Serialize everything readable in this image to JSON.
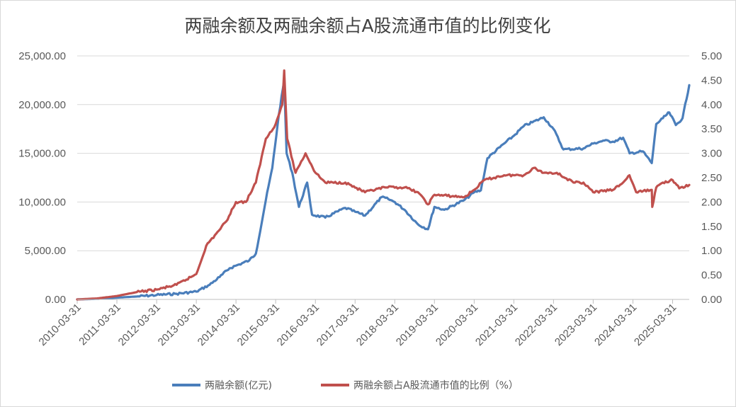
{
  "chart_data": {
    "type": "line",
    "title": "两融余额及两融余额占A股流通市值的比例变化",
    "x_tick_labels": [
      "2010-03-31",
      "2011-03-31",
      "2012-03-31",
      "2013-03-31",
      "2014-03-31",
      "2015-03-31",
      "2016-03-31",
      "2017-03-31",
      "2018-03-31",
      "2019-03-31",
      "2020-03-31",
      "2021-03-31",
      "2022-03-31",
      "2023-03-31",
      "2024-03-31",
      "2025-03-31"
    ],
    "x_range": [
      "2010-03-31",
      "2025-08-31"
    ],
    "y_left": {
      "range": [
        0,
        25000
      ],
      "ticks": [
        "0.00",
        "5,000.00",
        "10,000.00",
        "15,000.00",
        "20,000.00",
        "25,000.00"
      ]
    },
    "y_right": {
      "range": [
        0,
        5
      ],
      "ticks": [
        "0.00",
        "0.50",
        "1.00",
        "1.50",
        "2.00",
        "2.50",
        "3.00",
        "3.50",
        "4.00",
        "4.50",
        "5.00"
      ]
    },
    "grid": "horizontal",
    "legend_position": "bottom",
    "series": [
      {
        "name": "两融余额(亿元)",
        "axis": "left",
        "color": "#4a7ebb",
        "points": [
          [
            "2010-03-31",
            0
          ],
          [
            "2010-09-30",
            60
          ],
          [
            "2011-03-31",
            180
          ],
          [
            "2011-09-30",
            300
          ],
          [
            "2012-03-31",
            450
          ],
          [
            "2012-09-30",
            580
          ],
          [
            "2013-03-31",
            800
          ],
          [
            "2013-07-31",
            1500
          ],
          [
            "2013-10-31",
            2300
          ],
          [
            "2014-01-31",
            3200
          ],
          [
            "2014-04-30",
            3600
          ],
          [
            "2014-07-31",
            4000
          ],
          [
            "2014-09-30",
            4700
          ],
          [
            "2014-12-31",
            10200
          ],
          [
            "2015-02-28",
            13500
          ],
          [
            "2015-04-30",
            19000
          ],
          [
            "2015-06-18",
            22500
          ],
          [
            "2015-07-10",
            15000
          ],
          [
            "2015-08-31",
            13000
          ],
          [
            "2015-10-31",
            9500
          ],
          [
            "2016-01-15",
            12000
          ],
          [
            "2016-02-29",
            8700
          ],
          [
            "2016-06-30",
            8400
          ],
          [
            "2016-12-31",
            9400
          ],
          [
            "2017-03-31",
            9000
          ],
          [
            "2017-06-30",
            8600
          ],
          [
            "2017-11-30",
            10500
          ],
          [
            "2018-01-31",
            10300
          ],
          [
            "2018-03-31",
            10000
          ],
          [
            "2018-06-30",
            9200
          ],
          [
            "2018-10-31",
            7700
          ],
          [
            "2019-01-31",
            7200
          ],
          [
            "2019-03-31",
            9500
          ],
          [
            "2019-06-30",
            9200
          ],
          [
            "2019-12-31",
            10200
          ],
          [
            "2020-03-31",
            11000
          ],
          [
            "2020-05-31",
            11200
          ],
          [
            "2020-07-31",
            14500
          ],
          [
            "2020-12-31",
            16000
          ],
          [
            "2021-03-31",
            16800
          ],
          [
            "2021-06-30",
            17800
          ],
          [
            "2021-12-31",
            18700
          ],
          [
            "2022-03-31",
            17500
          ],
          [
            "2022-06-30",
            15400
          ],
          [
            "2022-12-31",
            15500
          ],
          [
            "2023-03-31",
            16000
          ],
          [
            "2023-06-30",
            16300
          ],
          [
            "2023-09-30",
            16200
          ],
          [
            "2023-12-31",
            16600
          ],
          [
            "2024-02-29",
            15000
          ],
          [
            "2024-06-30",
            15200
          ],
          [
            "2024-09-20",
            14000
          ],
          [
            "2024-10-31",
            18000
          ],
          [
            "2024-12-31",
            18600
          ],
          [
            "2025-02-28",
            19200
          ],
          [
            "2025-04-30",
            17900
          ],
          [
            "2025-06-30",
            18600
          ],
          [
            "2025-08-31",
            22000
          ]
        ]
      },
      {
        "name": "两融余额占A股流通市值的比例（%）",
        "axis": "right",
        "color": "#c0504d",
        "points": [
          [
            "2010-03-31",
            0.0
          ],
          [
            "2010-09-30",
            0.02
          ],
          [
            "2011-03-31",
            0.07
          ],
          [
            "2011-09-30",
            0.15
          ],
          [
            "2012-03-31",
            0.2
          ],
          [
            "2012-09-30",
            0.3
          ],
          [
            "2013-03-31",
            0.52
          ],
          [
            "2013-06-30",
            1.1
          ],
          [
            "2013-09-30",
            1.35
          ],
          [
            "2013-12-31",
            1.6
          ],
          [
            "2014-03-31",
            2.0
          ],
          [
            "2014-06-30",
            2.0
          ],
          [
            "2014-09-30",
            2.4
          ],
          [
            "2014-12-31",
            3.3
          ],
          [
            "2015-03-31",
            3.6
          ],
          [
            "2015-05-31",
            4.0
          ],
          [
            "2015-06-18",
            4.7
          ],
          [
            "2015-07-15",
            3.3
          ],
          [
            "2015-09-30",
            2.6
          ],
          [
            "2015-12-31",
            3.0
          ],
          [
            "2016-03-31",
            2.6
          ],
          [
            "2016-06-30",
            2.4
          ],
          [
            "2016-12-31",
            2.4
          ],
          [
            "2017-06-30",
            2.2
          ],
          [
            "2017-12-31",
            2.3
          ],
          [
            "2018-06-30",
            2.3
          ],
          [
            "2018-10-31",
            2.2
          ],
          [
            "2019-01-31",
            1.95
          ],
          [
            "2019-03-31",
            2.15
          ],
          [
            "2019-12-31",
            2.1
          ],
          [
            "2020-03-31",
            2.25
          ],
          [
            "2020-06-30",
            2.45
          ],
          [
            "2020-12-31",
            2.55
          ],
          [
            "2021-06-30",
            2.55
          ],
          [
            "2021-09-30",
            2.7
          ],
          [
            "2021-12-31",
            2.6
          ],
          [
            "2022-04-30",
            2.6
          ],
          [
            "2022-09-30",
            2.4
          ],
          [
            "2022-12-31",
            2.4
          ],
          [
            "2023-03-31",
            2.2
          ],
          [
            "2023-09-30",
            2.25
          ],
          [
            "2023-12-31",
            2.4
          ],
          [
            "2024-02-28",
            2.55
          ],
          [
            "2024-04-30",
            2.2
          ],
          [
            "2024-09-20",
            2.25
          ],
          [
            "2024-09-25",
            1.9
          ],
          [
            "2024-10-31",
            2.3
          ],
          [
            "2024-12-31",
            2.4
          ],
          [
            "2025-03-31",
            2.45
          ],
          [
            "2025-05-31",
            2.28
          ],
          [
            "2025-08-31",
            2.35
          ]
        ]
      }
    ]
  }
}
